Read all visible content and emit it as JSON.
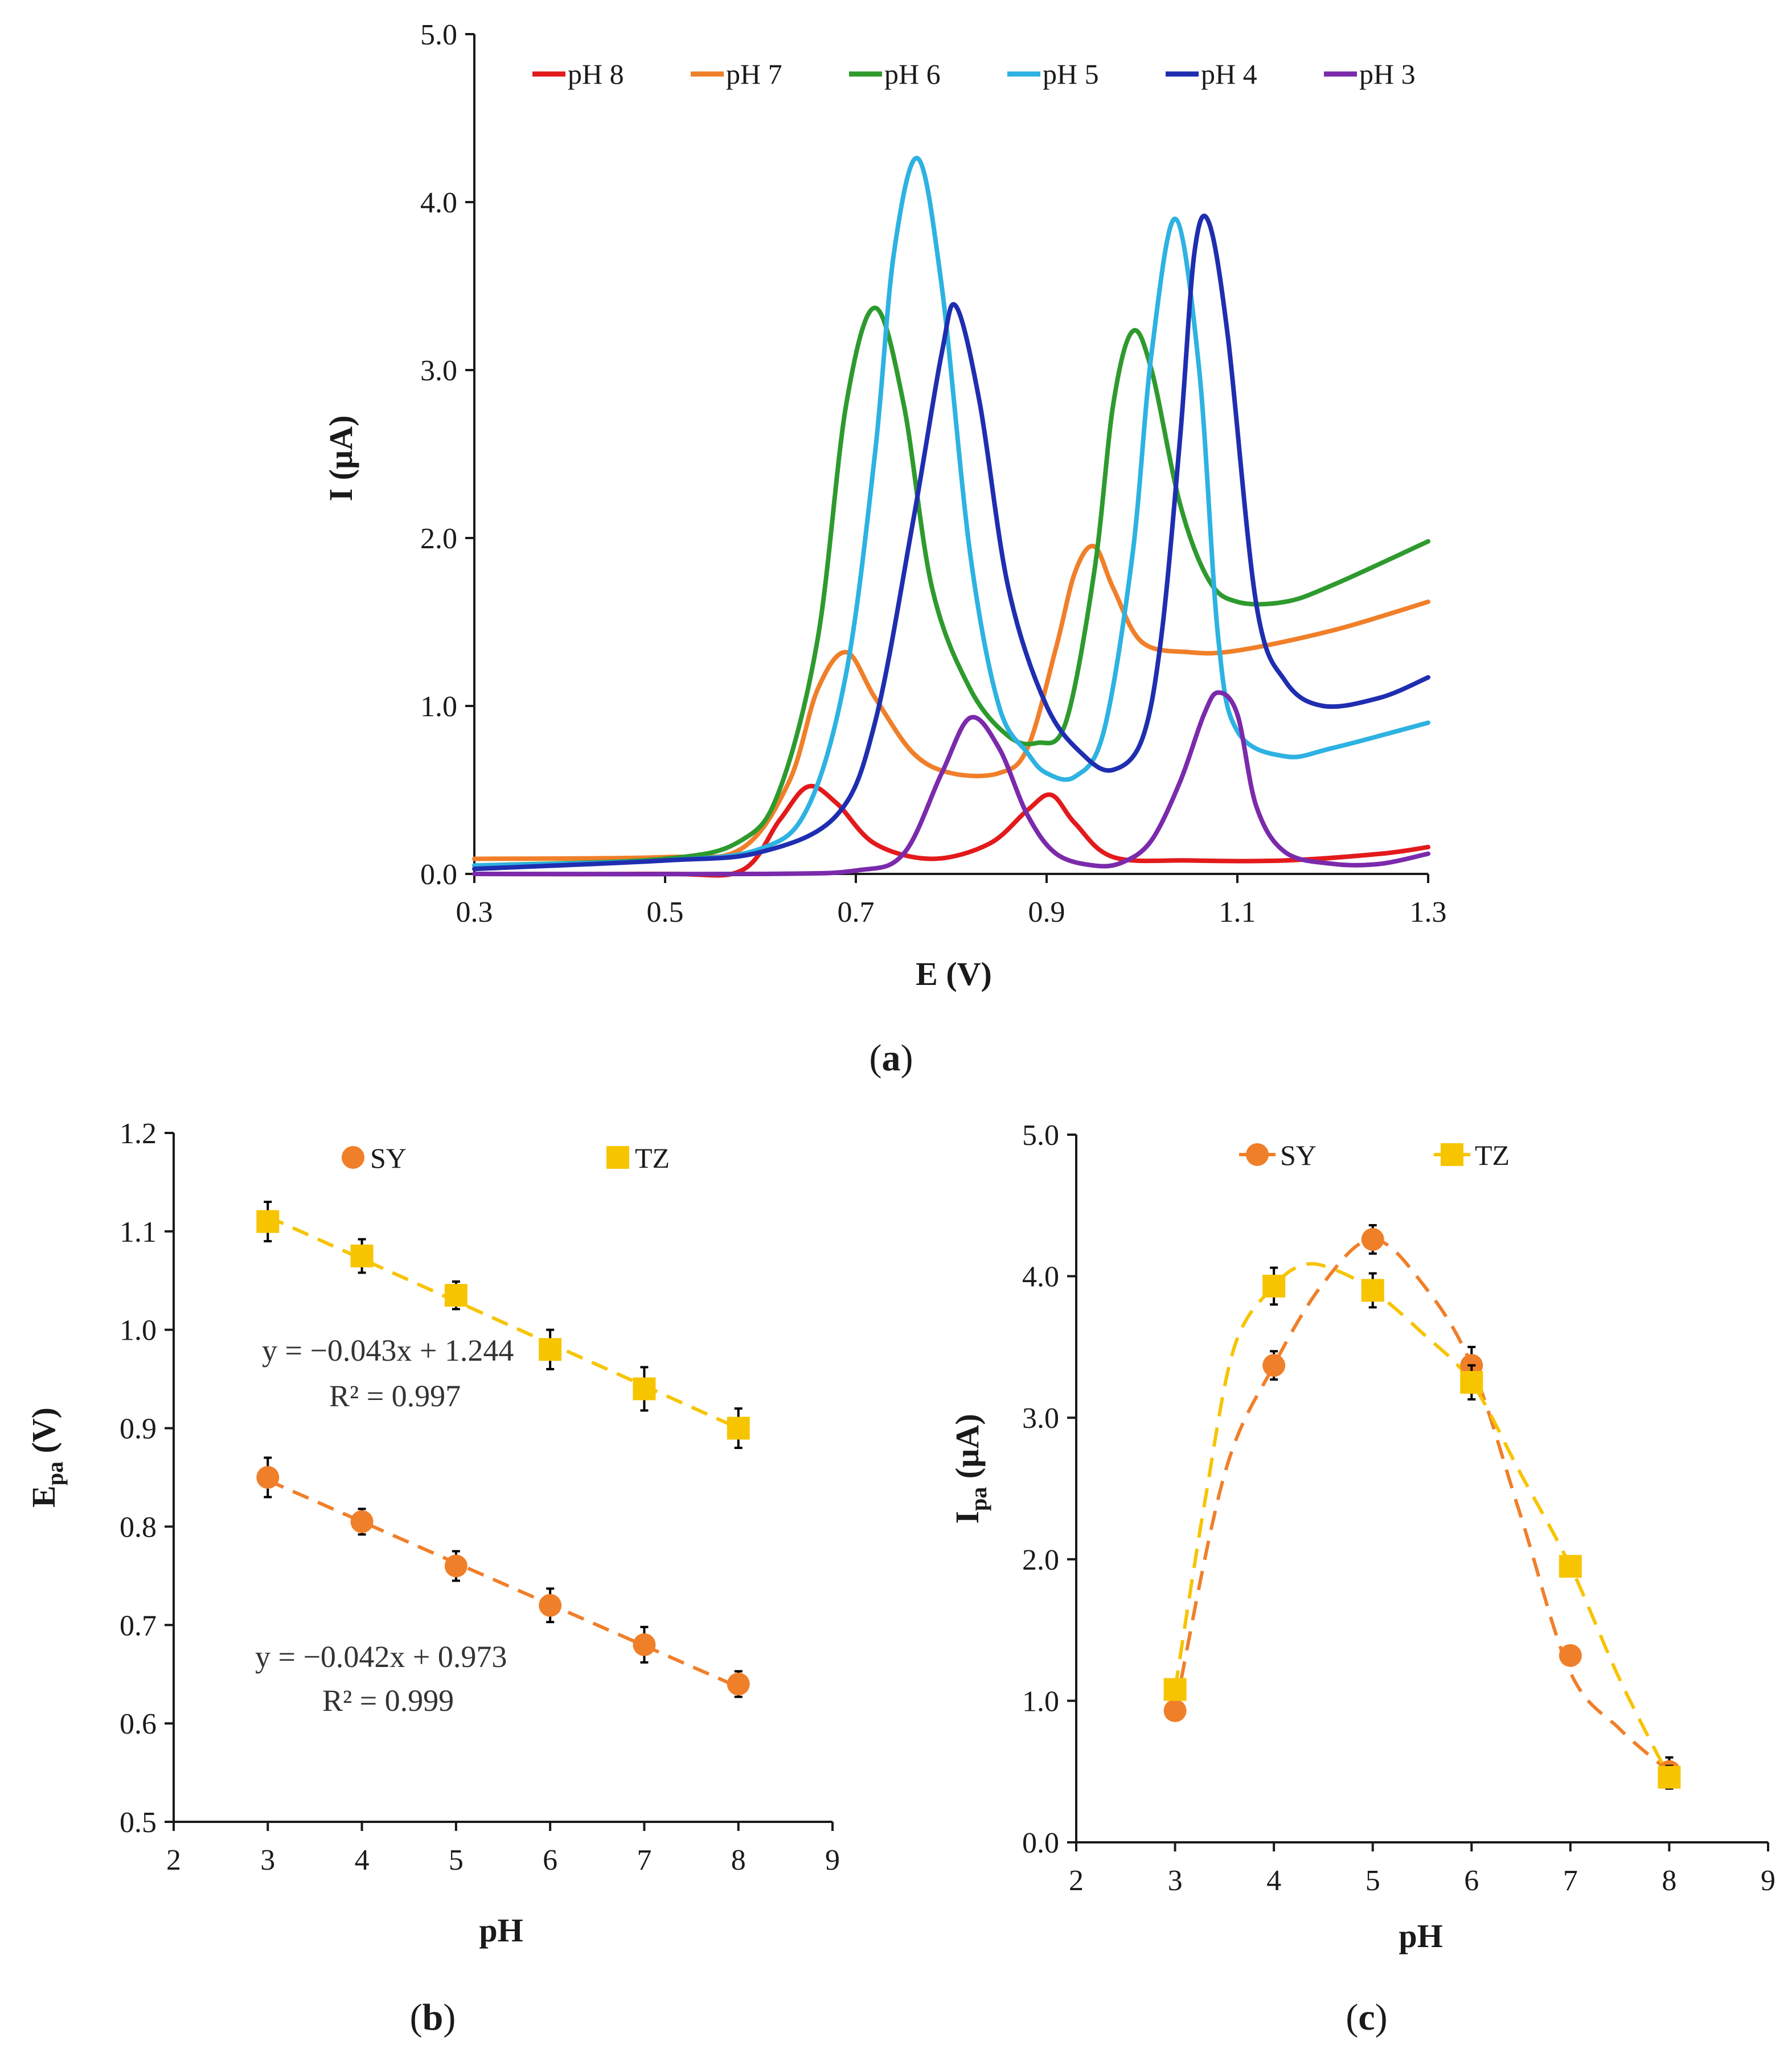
{
  "chart_data": [
    {
      "panel": "a",
      "panel_label": "a",
      "type": "line",
      "xlabel": "E (V)",
      "ylabel": "I (µA)",
      "xlim": [
        0.3,
        1.3
      ],
      "ylim": [
        0.0,
        5.0
      ],
      "x_ticks": [
        "0.3",
        "0.5",
        "0.7",
        "0.9",
        "1.1",
        "1.3"
      ],
      "y_ticks": [
        "0.0",
        "1.0",
        "2.0",
        "3.0",
        "4.0",
        "5.0"
      ],
      "legend_position": "top",
      "series": [
        {
          "name": "pH 8",
          "color": "#e31a1c",
          "x": [
            0.3,
            0.5,
            0.58,
            0.62,
            0.65,
            0.68,
            0.72,
            0.78,
            0.84,
            0.88,
            0.905,
            0.93,
            0.97,
            1.05,
            1.15,
            1.25,
            1.3
          ],
          "y": [
            0.0,
            0.0,
            0.02,
            0.32,
            0.52,
            0.42,
            0.18,
            0.09,
            0.18,
            0.38,
            0.47,
            0.3,
            0.1,
            0.08,
            0.08,
            0.12,
            0.16
          ]
        },
        {
          "name": "pH 7",
          "color": "#f07f2a",
          "x": [
            0.3,
            0.5,
            0.58,
            0.63,
            0.66,
            0.69,
            0.72,
            0.76,
            0.8,
            0.85,
            0.88,
            0.91,
            0.93,
            0.95,
            0.97,
            1.0,
            1.05,
            1.1,
            1.2,
            1.3
          ],
          "y": [
            0.09,
            0.1,
            0.15,
            0.55,
            1.1,
            1.32,
            1.05,
            0.72,
            0.6,
            0.6,
            0.75,
            1.35,
            1.8,
            1.95,
            1.7,
            1.38,
            1.32,
            1.33,
            1.45,
            1.62
          ]
        },
        {
          "name": "pH 6",
          "color": "#2e9a2e",
          "x": [
            0.3,
            0.5,
            0.58,
            0.62,
            0.66,
            0.69,
            0.72,
            0.75,
            0.78,
            0.82,
            0.86,
            0.89,
            0.92,
            0.95,
            0.97,
            0.99,
            1.01,
            1.04,
            1.07,
            1.1,
            1.15,
            1.2,
            1.3
          ],
          "y": [
            0.05,
            0.09,
            0.2,
            0.5,
            1.4,
            2.8,
            3.37,
            2.8,
            1.7,
            1.1,
            0.82,
            0.78,
            0.9,
            1.8,
            2.8,
            3.23,
            3.0,
            2.2,
            1.75,
            1.62,
            1.62,
            1.72,
            1.98
          ]
        },
        {
          "name": "pH 5",
          "color": "#2db2e2",
          "x": [
            0.3,
            0.5,
            0.6,
            0.65,
            0.69,
            0.72,
            0.74,
            0.765,
            0.79,
            0.82,
            0.85,
            0.88,
            0.9,
            0.93,
            0.96,
            0.99,
            1.01,
            1.035,
            1.06,
            1.08,
            1.1,
            1.15,
            1.2,
            1.3
          ],
          "y": [
            0.05,
            0.08,
            0.15,
            0.4,
            1.2,
            2.5,
            3.7,
            4.26,
            3.5,
            1.9,
            1.0,
            0.72,
            0.6,
            0.58,
            0.85,
            1.9,
            3.1,
            3.9,
            3.0,
            1.4,
            0.85,
            0.7,
            0.75,
            0.9
          ]
        },
        {
          "name": "pH 4",
          "color": "#1f2eb0",
          "x": [
            0.3,
            0.5,
            0.6,
            0.68,
            0.72,
            0.76,
            0.79,
            0.805,
            0.83,
            0.86,
            0.9,
            0.94,
            0.97,
            1.0,
            1.02,
            1.04,
            1.055,
            1.07,
            1.09,
            1.12,
            1.15,
            1.19,
            1.25,
            1.3
          ],
          "y": [
            0.03,
            0.08,
            0.13,
            0.35,
            0.9,
            2.1,
            3.1,
            3.38,
            2.8,
            1.7,
            1.0,
            0.7,
            0.62,
            0.8,
            1.4,
            2.6,
            3.7,
            3.88,
            3.2,
            1.6,
            1.15,
            1.0,
            1.05,
            1.17
          ]
        },
        {
          "name": "pH 3",
          "color": "#7a2aab",
          "x": [
            0.3,
            0.6,
            0.7,
            0.75,
            0.79,
            0.82,
            0.85,
            0.88,
            0.91,
            0.95,
            0.98,
            1.01,
            1.04,
            1.065,
            1.08,
            1.1,
            1.12,
            1.15,
            1.2,
            1.25,
            1.3
          ],
          "y": [
            0.0,
            0.0,
            0.02,
            0.12,
            0.6,
            0.93,
            0.75,
            0.35,
            0.12,
            0.05,
            0.07,
            0.2,
            0.55,
            0.95,
            1.08,
            0.95,
            0.4,
            0.13,
            0.06,
            0.06,
            0.12
          ]
        }
      ]
    },
    {
      "panel": "b",
      "panel_label": "b",
      "type": "scatter",
      "xlabel": "pH",
      "ylabel_main": "E",
      "ylabel_sub": "pa",
      "ylabel_unit": " (V)",
      "xlim": [
        2,
        9
      ],
      "ylim": [
        0.5,
        1.2
      ],
      "x_ticks": [
        "2",
        "3",
        "4",
        "5",
        "6",
        "7",
        "8",
        "9"
      ],
      "y_ticks": [
        "0.5",
        "0.6",
        "0.7",
        "0.8",
        "0.9",
        "1.0",
        "1.1",
        "1.2"
      ],
      "legend_position": "top",
      "series": [
        {
          "name": "SY",
          "color": "#f07f2a",
          "marker": "circle",
          "x": [
            3,
            4,
            5,
            6,
            7,
            8
          ],
          "y": [
            0.85,
            0.805,
            0.76,
            0.72,
            0.68,
            0.64
          ],
          "err": [
            0.02,
            0.013,
            0.015,
            0.017,
            0.018,
            0.013
          ],
          "fit": {
            "slope": -0.042,
            "intercept": 0.973,
            "equation": "y = −0.042x + 0.973",
            "r2": "R² = 0.999"
          }
        },
        {
          "name": "TZ",
          "color": "#f7c400",
          "marker": "square",
          "x": [
            3,
            4,
            5,
            6,
            7,
            8
          ],
          "y": [
            1.11,
            1.075,
            1.035,
            0.98,
            0.94,
            0.9
          ],
          "err": [
            0.02,
            0.017,
            0.014,
            0.02,
            0.022,
            0.02
          ],
          "fit": {
            "slope": -0.043,
            "intercept": 1.244,
            "equation": "y = −0.043x + 1.244",
            "r2": "R² = 0.997"
          }
        }
      ]
    },
    {
      "panel": "c",
      "panel_label": "c",
      "type": "scatter",
      "xlabel": "pH",
      "ylabel_main": "I",
      "ylabel_sub": "pa",
      "ylabel_unit": " (µA)",
      "xlim": [
        2,
        9
      ],
      "ylim": [
        0.0,
        5.0
      ],
      "x_ticks": [
        "2",
        "3",
        "4",
        "5",
        "6",
        "7",
        "8",
        "9"
      ],
      "y_ticks": [
        "0.0",
        "1.0",
        "2.0",
        "3.0",
        "4.0",
        "5.0"
      ],
      "legend_position": "top",
      "series": [
        {
          "name": "SY",
          "color": "#f07f2a",
          "marker": "circle",
          "x": [
            3,
            4,
            5,
            6,
            7,
            8
          ],
          "y": [
            0.93,
            3.37,
            4.26,
            3.37,
            1.32,
            0.5
          ],
          "err": [
            0.05,
            0.1,
            0.1,
            0.13,
            0.06,
            0.1
          ],
          "smooth_x": [
            3,
            3.5,
            4,
            4.5,
            5,
            5.5,
            6,
            6.5,
            7,
            7.5,
            8
          ],
          "smooth_y": [
            0.93,
            2.6,
            3.37,
            3.95,
            4.26,
            3.95,
            3.37,
            2.3,
            1.2,
            0.8,
            0.5
          ]
        },
        {
          "name": "TZ",
          "color": "#f7c400",
          "marker": "square",
          "x": [
            3,
            4,
            5,
            6,
            7,
            8
          ],
          "y": [
            1.08,
            3.93,
            3.9,
            3.25,
            1.95,
            0.46
          ],
          "err": [
            0.06,
            0.13,
            0.12,
            0.12,
            0.06,
            0.08
          ],
          "smooth_x": [
            3,
            3.3,
            3.6,
            4,
            4.3,
            4.6,
            5,
            5.5,
            6,
            6.5,
            7,
            7.5,
            8
          ],
          "smooth_y": [
            1.08,
            2.4,
            3.5,
            3.93,
            4.08,
            4.05,
            3.9,
            3.6,
            3.25,
            2.6,
            1.95,
            1.15,
            0.46
          ]
        }
      ]
    }
  ]
}
